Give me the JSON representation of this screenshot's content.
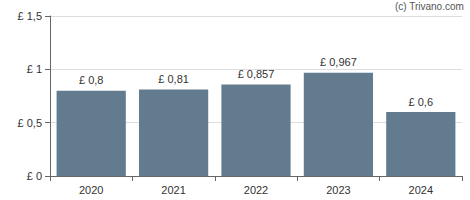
{
  "chart_data": {
    "type": "bar",
    "categories": [
      "2020",
      "2021",
      "2022",
      "2023",
      "2024"
    ],
    "values": [
      0.8,
      0.81,
      0.857,
      0.967,
      0.6
    ],
    "value_labels": [
      "£ 0,8",
      "£ 0,81",
      "£ 0,857",
      "£ 0,967",
      "£ 0,6"
    ],
    "data_labels": true,
    "color": "#627b8e",
    "ylim": [
      0,
      1.5
    ],
    "yticks": [
      {
        "value": 0,
        "label": "£ 0"
      },
      {
        "value": 0.5,
        "label": "£ 0,5"
      },
      {
        "value": 1,
        "label": "£ 1"
      },
      {
        "value": 1.5,
        "label": "£ 1,5"
      }
    ],
    "grid": true,
    "annotations": [
      "(c) Trivano.com"
    ]
  }
}
